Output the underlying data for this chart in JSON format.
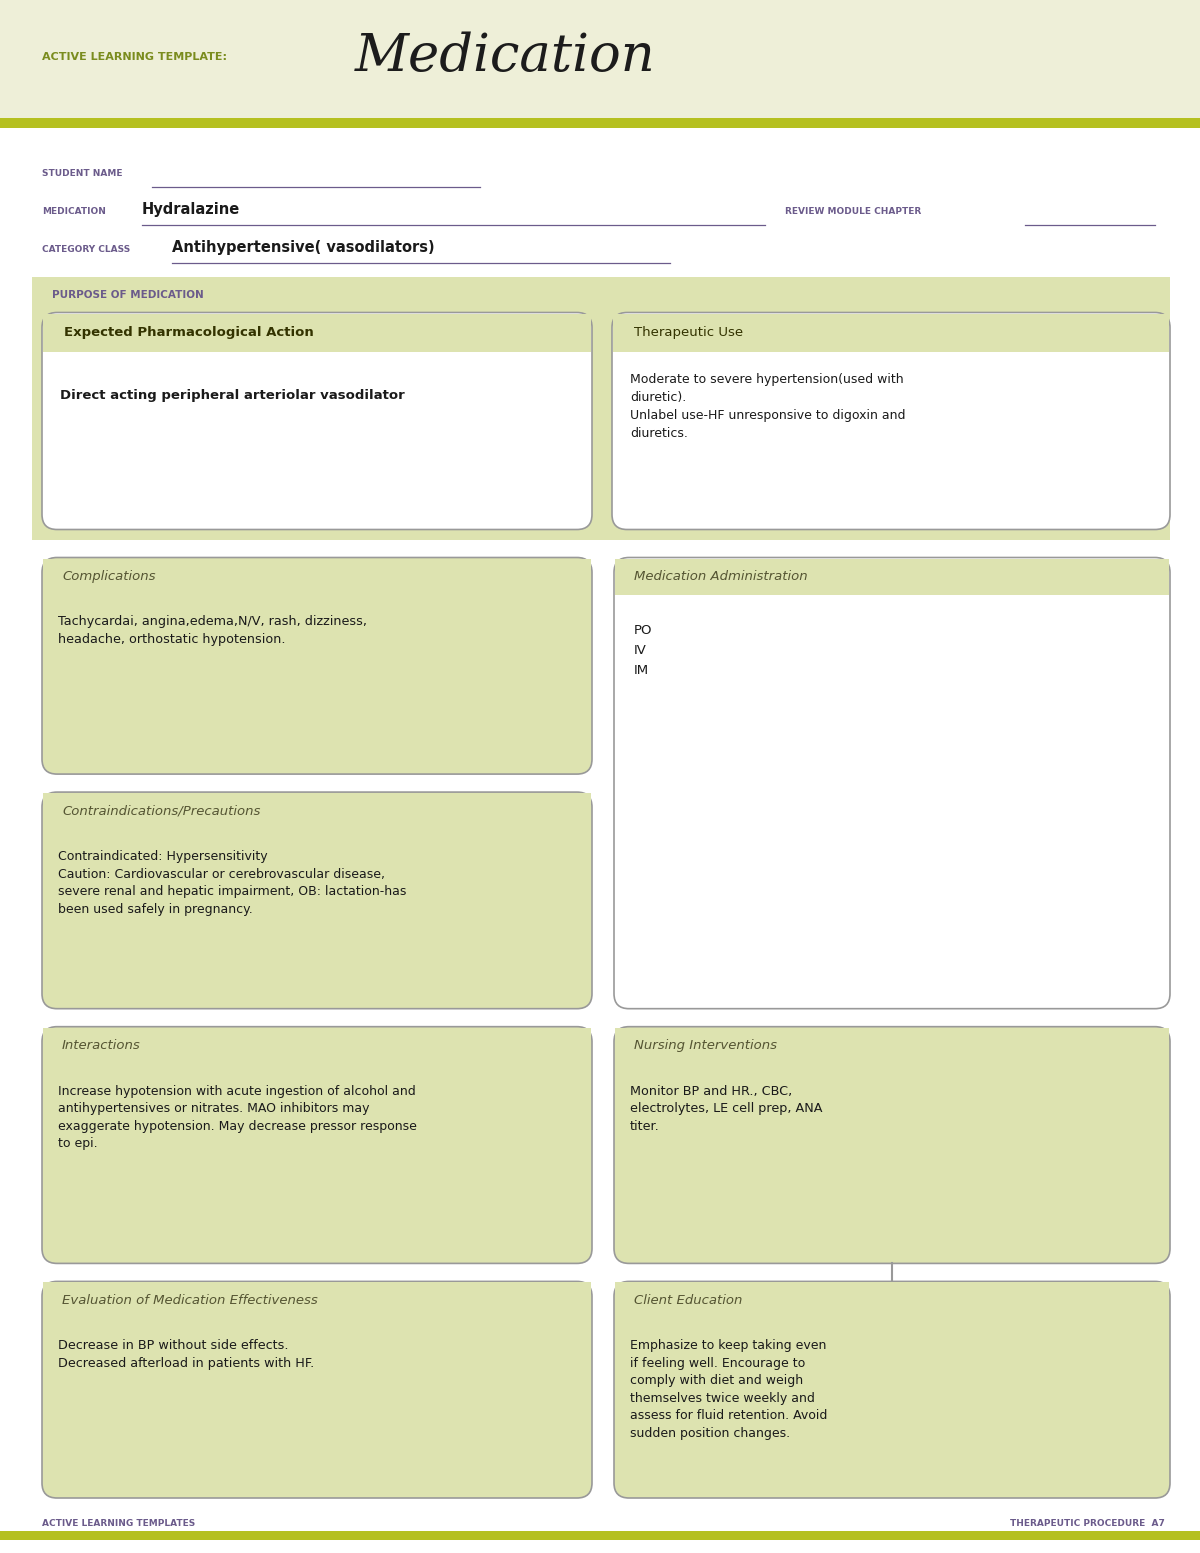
{
  "bg_color": "#eeefd8",
  "white": "#ffffff",
  "olive_green": "#7a8c1e",
  "olive_stripe": "#b5c020",
  "purple": "#6b5b8b",
  "gray_border": "#999999",
  "section_bg": "#dde3b0",
  "page_title": "Medication",
  "template_label": "ACTIVE LEARNING TEMPLATE:",
  "student_name_label": "STUDENT NAME",
  "medication_label": "MEDICATION",
  "medication_value": "Hydralazine",
  "review_label": "REVIEW MODULE CHAPTER",
  "category_label": "CATEGORY CLASS",
  "category_value": "Antihypertensive( vasodilators)",
  "purpose_label": "PURPOSE OF MEDICATION",
  "box1_title": "Expected Pharmacological Action",
  "box1_content": "Direct acting peripheral arteriolar vasodilator",
  "box2_title": "Therapeutic Use",
  "box2_content": "Moderate to severe hypertension(used with\ndiuretic).\nUnlabel use-HF unresponsive to digoxin and\ndiuretics.",
  "box3_title": "Complications",
  "box3_content": "Tachycardai, angina,edema,N/V, rash, dizziness,\nheadache, orthostatic hypotension.",
  "box4_title": "Medication Administration",
  "box4_content": "PO\nIV\nIM",
  "box5_title": "Contraindications/Precautions",
  "box5_content": "Contraindicated: Hypersensitivity\nCaution: Cardiovascular or cerebrovascular disease,\nsevere renal and hepatic impairment, OB: lactation-has\nbeen used safely in pregnancy.",
  "box6_title": "Nursing Interventions",
  "box6_content": "Monitor BP and HR., CBC,\nelectrolytes, LE cell prep, ANA\ntiter.",
  "box7_title": "Interactions",
  "box7_content": "Increase hypotension with acute ingestion of alcohol and\nantihypertensives or nitrates. MAO inhibitors may\nexaggerate hypotension. May decrease pressor response\nto epi.",
  "box8_title": "Client Education",
  "box8_content": "Emphasize to keep taking even\nif feeling well. Encourage to\ncomply with diet and weigh\nthemselves twice weekly and\nassess for fluid retention. Avoid\nsudden position changes.",
  "box9_title": "Evaluation of Medication Effectiveness",
  "box9_content": "Decrease in BP without side effects.\nDecreased afterload in patients with HF.",
  "footer_left": "ACTIVE LEARNING TEMPLATES",
  "footer_right": "THERAPEUTIC PROCEDURE  A7"
}
